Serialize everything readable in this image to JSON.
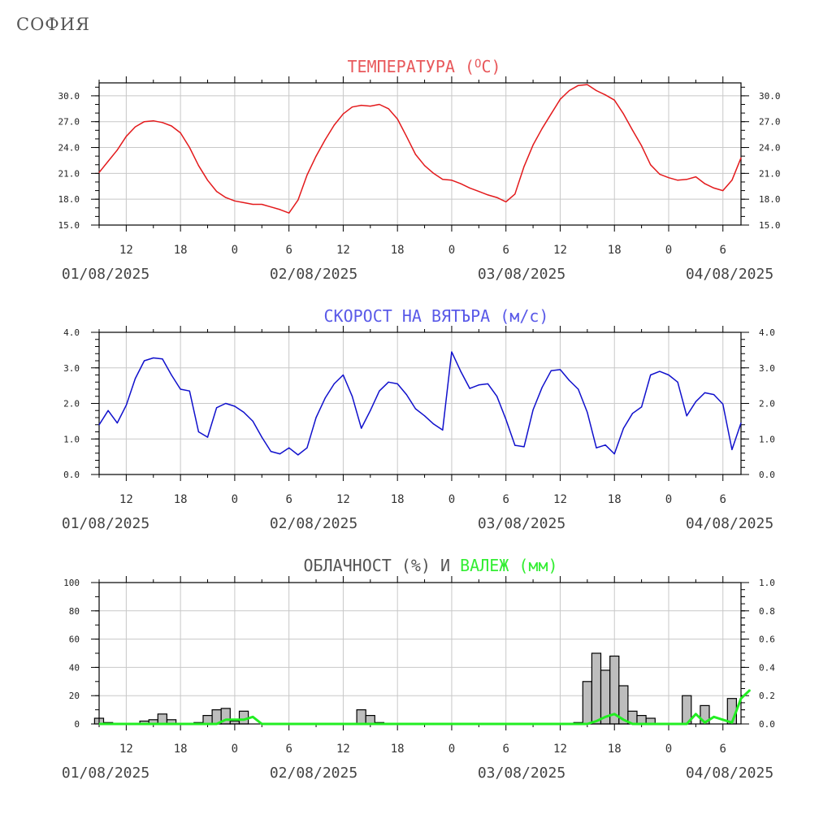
{
  "city": "СОФИЯ",
  "x_axis": {
    "tick_labels": [
      "12",
      "18",
      "0",
      "6",
      "12",
      "18",
      "0",
      "6",
      "12",
      "18",
      "0",
      "6"
    ],
    "date_labels": [
      "01/08/2025",
      "02/08/2025",
      "03/08/2025",
      "04/08/2025"
    ]
  },
  "chart_data": [
    {
      "type": "line",
      "title": "ТЕМПЕРАТУРА (",
      "title_unit": "O",
      "title_suffix": "C)",
      "color": "#e31a1c",
      "ylim": [
        15,
        31.5
      ],
      "yticks": [
        "15.0",
        "18.0",
        "21.0",
        "24.0",
        "27.0",
        "30.0"
      ],
      "ytick_values": [
        15,
        18,
        21,
        24,
        27,
        30
      ],
      "x_start_hour": 9,
      "x_step_hours": 1,
      "values": [
        21.1,
        22.4,
        23.7,
        25.3,
        26.4,
        27.0,
        27.1,
        26.9,
        26.5,
        25.7,
        24.0,
        21.9,
        20.2,
        18.9,
        18.2,
        17.8,
        17.6,
        17.4,
        17.4,
        17.1,
        16.8,
        16.4,
        17.9,
        20.8,
        23.0,
        24.9,
        26.6,
        27.9,
        28.7,
        28.9,
        28.8,
        29.0,
        28.5,
        27.3,
        25.3,
        23.2,
        21.9,
        21.0,
        20.3,
        20.2,
        19.8,
        19.3,
        18.9,
        18.5,
        18.2,
        17.7,
        18.6,
        21.8,
        24.3,
        26.2,
        27.9,
        29.6,
        30.6,
        31.2,
        31.3,
        30.6,
        30.1,
        29.5,
        27.9,
        26.0,
        24.2,
        22.0,
        20.9,
        20.5,
        20.2,
        20.3,
        20.6,
        19.8,
        19.3,
        19.0,
        20.2,
        22.8
      ]
    },
    {
      "type": "line",
      "title": "СКОРОСТ НА ВЯТЪРА (м/с)",
      "color": "#1010cc",
      "ylim": [
        0,
        4
      ],
      "yticks": [
        "0.0",
        "1.0",
        "2.0",
        "3.0",
        "4.0"
      ],
      "ytick_values": [
        0,
        1,
        2,
        3,
        4
      ],
      "x_start_hour": 9,
      "x_step_hours": 1,
      "values": [
        1.4,
        1.8,
        1.45,
        1.95,
        2.7,
        3.2,
        3.28,
        3.25,
        2.8,
        2.4,
        2.35,
        1.2,
        1.05,
        1.88,
        2.0,
        1.92,
        1.75,
        1.5,
        1.05,
        0.65,
        0.58,
        0.75,
        0.55,
        0.75,
        1.6,
        2.15,
        2.55,
        2.8,
        2.2,
        1.3,
        1.8,
        2.35,
        2.6,
        2.55,
        2.25,
        1.85,
        1.65,
        1.42,
        1.25,
        3.45,
        2.9,
        2.42,
        2.52,
        2.55,
        2.2,
        1.55,
        0.82,
        0.78,
        1.82,
        2.45,
        2.92,
        2.95,
        2.65,
        2.4,
        1.75,
        0.75,
        0.83,
        0.58,
        1.3,
        1.72,
        1.9,
        2.8,
        2.9,
        2.8,
        2.6,
        1.65,
        2.05,
        2.3,
        2.25,
        1.98,
        0.7,
        1.45
      ]
    },
    {
      "type": "bar+line",
      "title_part1": "ОБЛАЧНОСТ (%) И ",
      "title_part2": "ВАЛЕЖ (мм)",
      "bar_color": "#bdbdbd",
      "line_color": "#22ee22",
      "ylim_left": [
        0,
        100
      ],
      "yticks_left": [
        "0",
        "20",
        "40",
        "60",
        "80",
        "100"
      ],
      "ytick_values_left": [
        0,
        20,
        40,
        60,
        80,
        100
      ],
      "ylim_right": [
        0,
        1
      ],
      "yticks_right": [
        "0.0",
        "0.2",
        "0.4",
        "0.6",
        "0.8",
        "1.0"
      ],
      "ytick_values_right": [
        0,
        0.2,
        0.4,
        0.6,
        0.8,
        1.0
      ],
      "x_start_hour": 9,
      "x_step_hours": 1,
      "cloudiness": [
        4,
        1,
        0,
        0,
        0,
        2,
        3,
        7,
        3,
        0,
        0,
        1,
        6,
        10,
        11,
        2,
        9,
        0,
        0,
        0,
        0,
        0,
        0,
        0,
        0,
        0,
        0,
        0,
        0,
        10,
        6,
        1,
        0,
        0,
        0,
        0,
        0,
        0,
        0,
        0,
        0,
        0,
        0,
        0,
        0,
        0,
        0,
        0,
        0,
        0,
        0,
        0,
        0,
        1,
        30,
        50,
        38,
        48,
        27,
        9,
        6,
        4,
        0,
        0,
        0,
        20,
        0,
        13,
        0,
        0,
        18,
        0
      ],
      "precipitation": [
        0,
        0,
        0,
        0,
        0,
        0,
        0,
        0,
        0,
        0,
        0,
        0,
        0,
        0,
        0.03,
        0.03,
        0.03,
        0.05,
        0,
        0,
        0,
        0,
        0,
        0,
        0,
        0,
        0,
        0,
        0,
        0,
        0,
        0,
        0,
        0,
        0,
        0,
        0,
        0,
        0,
        0,
        0,
        0,
        0,
        0,
        0,
        0,
        0,
        0,
        0,
        0,
        0,
        0,
        0,
        0,
        0,
        0.02,
        0.05,
        0.07,
        0.03,
        0,
        0,
        0,
        0,
        0,
        0,
        0,
        0.07,
        0.01,
        0.05,
        0.03,
        0.01,
        0.18,
        0.24
      ]
    }
  ]
}
